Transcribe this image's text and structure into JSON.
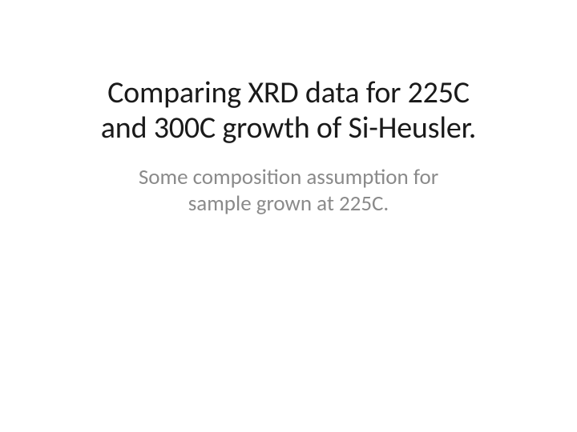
{
  "slide": {
    "title_line1": "Comparing XRD data for 225C",
    "title_line2": "and 300C growth of Si-Heusler.",
    "subtitle_line1": "Some composition assumption for",
    "subtitle_line2": "sample grown at 225C.",
    "title_color": "#1a1a1a",
    "title_fontsize": 38,
    "subtitle_color": "#8a8a8a",
    "subtitle_fontsize": 27,
    "background_color": "#ffffff"
  }
}
